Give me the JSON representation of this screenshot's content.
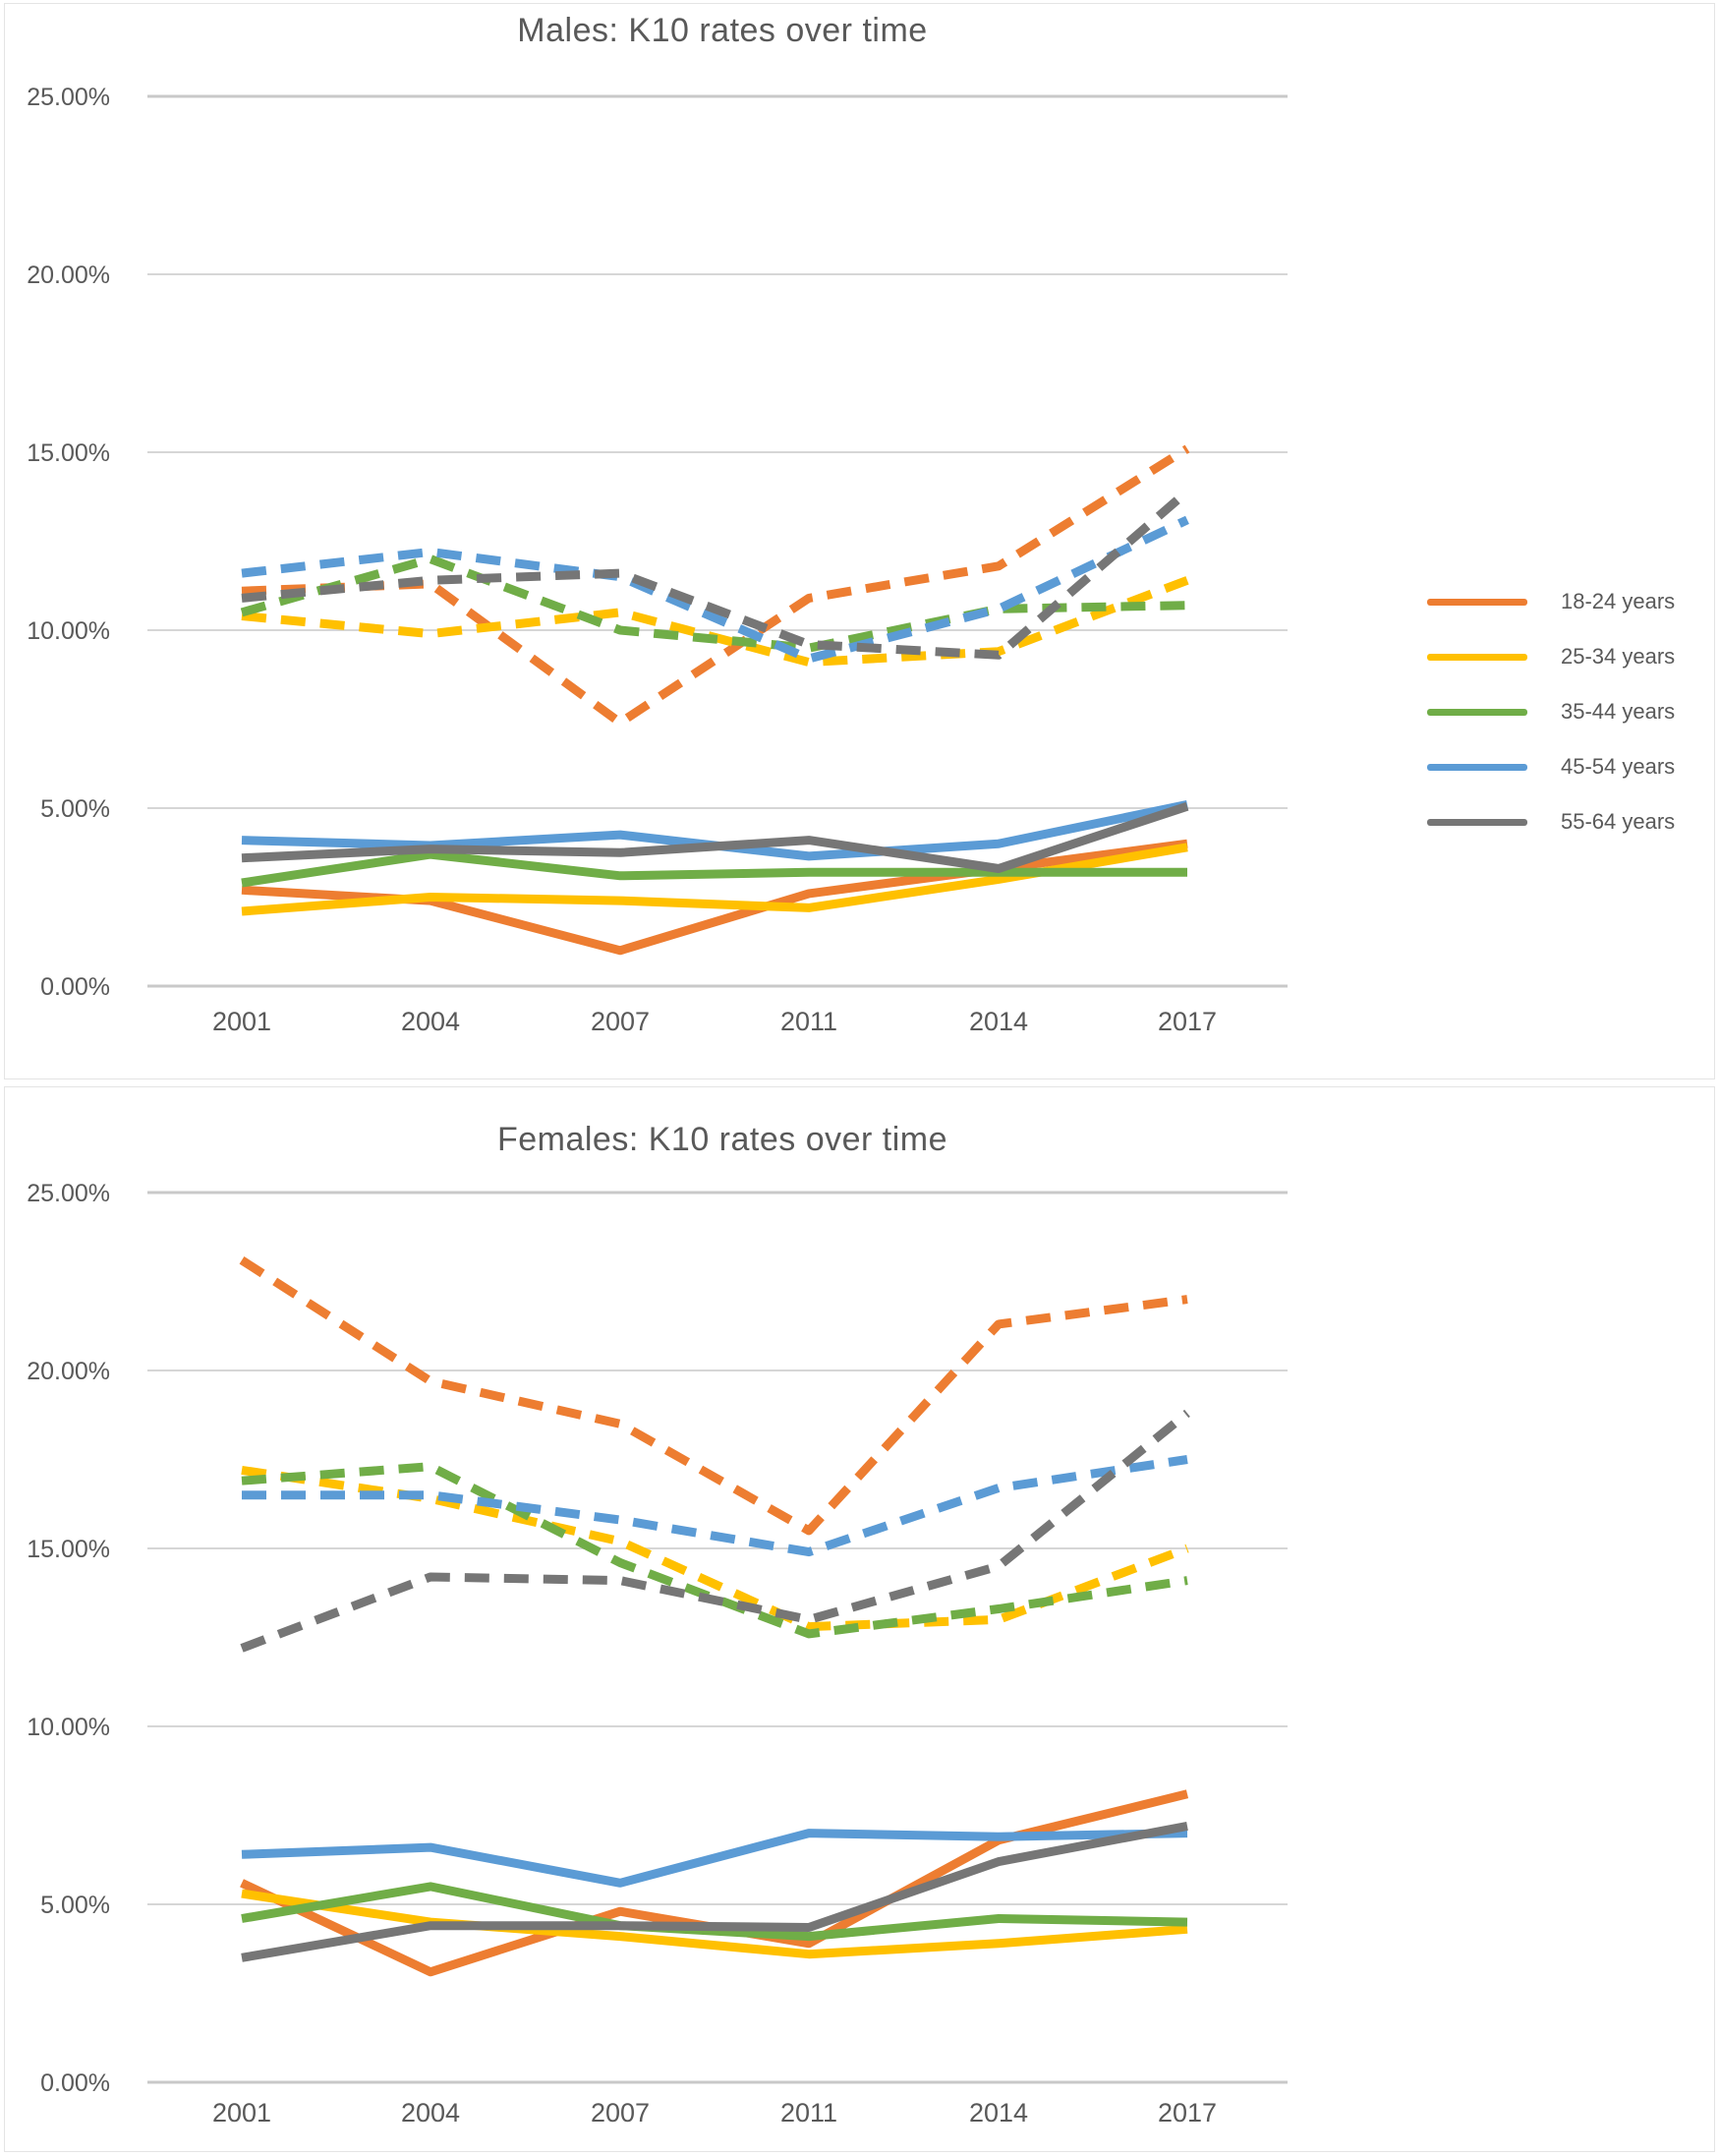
{
  "page": {
    "background": "#ffffff"
  },
  "colors": {
    "age_18_24": "#ED7D31",
    "age_25_34": "#FFC000",
    "age_35_44": "#70AD47",
    "age_45_54": "#5B9BD5",
    "age_55_64": "#767676",
    "axis_text": "#595959",
    "gridline": "#D6D6D6"
  },
  "legend": {
    "position": "right-of-males-chart",
    "items": [
      {
        "label": "18-24 years",
        "color": "#ED7D31"
      },
      {
        "label": "25-34 years",
        "color": "#FFC000"
      },
      {
        "label": "35-44 years",
        "color": "#70AD47"
      },
      {
        "label": "45-54 years",
        "color": "#5B9BD5"
      },
      {
        "label": "55-64 years",
        "color": "#767676"
      }
    ]
  },
  "chart_data": [
    {
      "type": "line",
      "title": "Males: K10 rates over time",
      "categories": [
        "2001",
        "2004",
        "2007",
        "2011",
        "2014",
        "2017"
      ],
      "y_tick_labels": [
        "25.00%",
        "20.00%",
        "15.00%",
        "10.00%",
        "5.00%",
        "0.00%"
      ],
      "ylim": [
        0,
        25
      ],
      "grid": true,
      "legend_position": "right",
      "series": [
        {
          "name": "18-24 years (dashed)",
          "group": "18-24 years",
          "style": "dashed",
          "color": "#ED7D31",
          "values": [
            11.1,
            11.3,
            7.4,
            10.9,
            11.8,
            15.1
          ]
        },
        {
          "name": "25-34 years (dashed)",
          "group": "25-34 years",
          "style": "dashed",
          "color": "#FFC000",
          "values": [
            10.4,
            9.9,
            10.5,
            9.1,
            9.4,
            11.4
          ]
        },
        {
          "name": "35-44 years (dashed)",
          "group": "35-44 years",
          "style": "dashed",
          "color": "#70AD47",
          "values": [
            10.5,
            12.0,
            10.0,
            9.5,
            10.6,
            10.7
          ]
        },
        {
          "name": "45-54 years (dashed)",
          "group": "45-54 years",
          "style": "dashed",
          "color": "#5B9BD5",
          "values": [
            11.6,
            12.2,
            11.5,
            9.2,
            10.6,
            13.1
          ]
        },
        {
          "name": "55-64 years (dashed)",
          "group": "55-64 years",
          "style": "dashed",
          "color": "#767676",
          "values": [
            10.9,
            11.4,
            11.6,
            9.6,
            9.3,
            13.9
          ]
        },
        {
          "name": "18-24 years (solid)",
          "group": "18-24 years",
          "style": "solid",
          "color": "#ED7D31",
          "values": [
            2.7,
            2.4,
            1.0,
            2.6,
            3.3,
            4.0
          ]
        },
        {
          "name": "25-34 years (solid)",
          "group": "25-34 years",
          "style": "solid",
          "color": "#FFC000",
          "values": [
            2.1,
            2.5,
            2.4,
            2.2,
            3.0,
            3.9
          ]
        },
        {
          "name": "35-44 years (solid)",
          "group": "35-44 years",
          "style": "solid",
          "color": "#70AD47",
          "values": [
            2.9,
            3.7,
            3.1,
            3.2,
            3.2,
            3.2
          ]
        },
        {
          "name": "45-54 years (solid)",
          "group": "45-54 years",
          "style": "solid",
          "color": "#5B9BD5",
          "values": [
            4.1,
            3.95,
            4.25,
            3.65,
            4.0,
            5.1
          ]
        },
        {
          "name": "55-64 years (solid)",
          "group": "55-64 years",
          "style": "solid",
          "color": "#767676",
          "values": [
            3.6,
            3.85,
            3.75,
            4.1,
            3.3,
            5.05
          ]
        }
      ]
    },
    {
      "type": "line",
      "title": "Females: K10 rates over time",
      "categories": [
        "2001",
        "2004",
        "2007",
        "2011",
        "2014",
        "2017"
      ],
      "y_tick_labels": [
        "25.00%",
        "20.00%",
        "15.00%",
        "10.00%",
        "5.00%",
        "0.00%"
      ],
      "ylim": [
        0,
        25
      ],
      "grid": true,
      "legend_position": "none",
      "series": [
        {
          "name": "18-24 years (dashed)",
          "group": "18-24 years",
          "style": "dashed",
          "color": "#ED7D31",
          "values": [
            23.1,
            19.7,
            18.5,
            15.5,
            21.3,
            22.0
          ]
        },
        {
          "name": "25-34 years (dashed)",
          "group": "25-34 years",
          "style": "dashed",
          "color": "#FFC000",
          "values": [
            17.2,
            16.4,
            15.2,
            12.8,
            13.0,
            15.0
          ]
        },
        {
          "name": "35-44 years (dashed)",
          "group": "35-44 years",
          "style": "dashed",
          "color": "#70AD47",
          "values": [
            16.9,
            17.3,
            14.6,
            12.6,
            13.3,
            14.1
          ]
        },
        {
          "name": "45-54 years (dashed)",
          "group": "45-54 years",
          "style": "dashed",
          "color": "#5B9BD5",
          "values": [
            16.5,
            16.5,
            15.8,
            14.9,
            16.7,
            17.5
          ]
        },
        {
          "name": "55-64 years (dashed)",
          "group": "55-64 years",
          "style": "dashed",
          "color": "#767676",
          "values": [
            12.2,
            14.2,
            14.1,
            13.0,
            14.5,
            18.8
          ]
        },
        {
          "name": "18-24 years (solid)",
          "group": "18-24 years",
          "style": "solid",
          "color": "#ED7D31",
          "values": [
            5.6,
            3.1,
            4.8,
            3.9,
            6.8,
            8.1
          ]
        },
        {
          "name": "25-34 years (solid)",
          "group": "25-34 years",
          "style": "solid",
          "color": "#FFC000",
          "values": [
            5.3,
            4.5,
            4.1,
            3.6,
            3.9,
            4.3
          ]
        },
        {
          "name": "35-44 years (solid)",
          "group": "35-44 years",
          "style": "solid",
          "color": "#70AD47",
          "values": [
            4.6,
            5.5,
            4.4,
            4.1,
            4.6,
            4.5
          ]
        },
        {
          "name": "45-54 years (solid)",
          "group": "45-54 years",
          "style": "solid",
          "color": "#5B9BD5",
          "values": [
            6.4,
            6.6,
            5.6,
            7.0,
            6.9,
            7.0
          ]
        },
        {
          "name": "55-64 years (solid)",
          "group": "55-64 years",
          "style": "solid",
          "color": "#767676",
          "values": [
            3.5,
            4.4,
            4.4,
            4.35,
            6.2,
            7.2
          ]
        }
      ]
    }
  ]
}
